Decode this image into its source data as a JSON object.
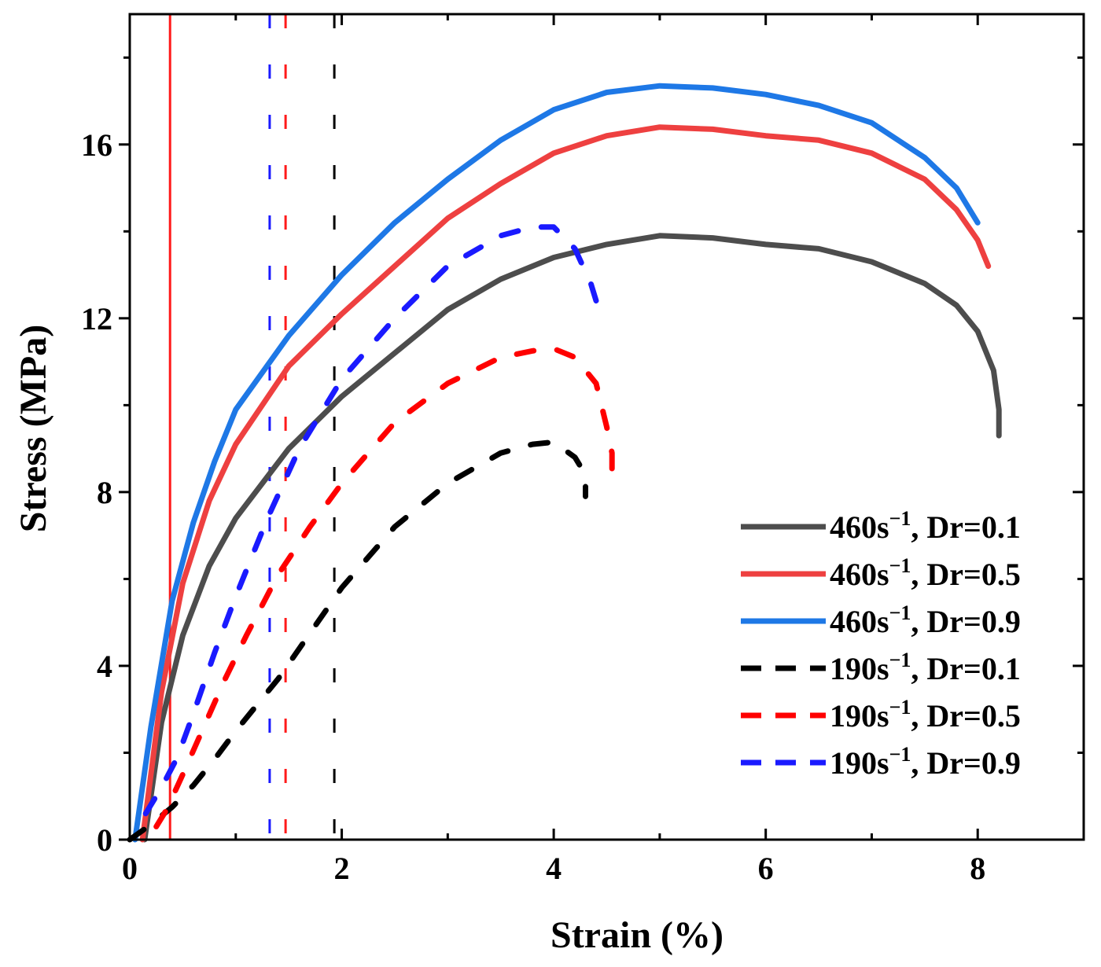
{
  "chart_data": {
    "type": "line",
    "title": "",
    "xlabel": "Strain (%)",
    "ylabel": "Stress (MPa)",
    "xlim": [
      0,
      9
    ],
    "ylim": [
      0,
      19
    ],
    "xticks": [
      0,
      2,
      4,
      6,
      8
    ],
    "yticks": [
      0,
      4,
      8,
      12,
      16
    ],
    "grid": false,
    "legend_position": "bottom-right",
    "reference_lines": [
      {
        "x": 0.38,
        "color": "#ff1a1a",
        "style": "solid"
      },
      {
        "x": 1.32,
        "color": "#1a1aff",
        "style": "dashed"
      },
      {
        "x": 1.47,
        "color": "#ff1a1a",
        "style": "dashed"
      },
      {
        "x": 1.93,
        "color": "#000000",
        "style": "dashed"
      }
    ],
    "series": [
      {
        "name": "460s−1, Dr=0.1",
        "label_main": "460s",
        "label_sup": "−1",
        "label_rest": ", Dr=0.1",
        "color": "#4d4d4d",
        "style": "solid",
        "x": [
          0.14,
          0.3,
          0.5,
          0.75,
          1.0,
          1.5,
          2.0,
          2.5,
          3.0,
          3.5,
          4.0,
          4.5,
          5.0,
          5.5,
          6.0,
          6.5,
          7.0,
          7.5,
          7.8,
          8.0,
          8.15,
          8.2,
          8.2
        ],
        "y": [
          0,
          2.7,
          4.7,
          6.3,
          7.4,
          9.0,
          10.2,
          11.2,
          12.2,
          12.9,
          13.4,
          13.7,
          13.9,
          13.85,
          13.7,
          13.6,
          13.3,
          12.8,
          12.3,
          11.7,
          10.8,
          9.9,
          9.3
        ]
      },
      {
        "name": "460s−1, Dr=0.5",
        "label_main": "460s",
        "label_sup": "−1",
        "label_rest": ", Dr=0.5",
        "color": "#ee4040",
        "style": "solid",
        "x": [
          0.12,
          0.3,
          0.5,
          0.75,
          1.0,
          1.5,
          2.0,
          2.5,
          3.0,
          3.5,
          4.0,
          4.5,
          5.0,
          5.5,
          6.0,
          6.5,
          7.0,
          7.5,
          7.8,
          8.0,
          8.1
        ],
        "y": [
          0,
          3.4,
          5.9,
          7.8,
          9.1,
          10.9,
          12.1,
          13.2,
          14.3,
          15.1,
          15.8,
          16.2,
          16.4,
          16.35,
          16.2,
          16.1,
          15.8,
          15.2,
          14.5,
          13.8,
          13.2
        ]
      },
      {
        "name": "460s−1, Dr=0.9",
        "label_main": "460s",
        "label_sup": "−1",
        "label_rest": ", Dr=0.9",
        "color": "#1e78e6",
        "style": "solid",
        "x": [
          0.05,
          0.2,
          0.4,
          0.6,
          0.8,
          1.0,
          1.5,
          2.0,
          2.5,
          3.0,
          3.5,
          4.0,
          4.5,
          5.0,
          5.5,
          6.0,
          6.5,
          7.0,
          7.5,
          7.8,
          8.0
        ],
        "y": [
          0,
          2.6,
          5.5,
          7.3,
          8.7,
          9.9,
          11.6,
          13.0,
          14.2,
          15.2,
          16.1,
          16.8,
          17.2,
          17.35,
          17.3,
          17.15,
          16.9,
          16.5,
          15.7,
          15.0,
          14.2
        ]
      },
      {
        "name": "190s−1, Dr=0.1",
        "label_main": "190s",
        "label_sup": "−1",
        "label_rest": ", Dr=0.1",
        "color": "#000000",
        "style": "dashed",
        "x": [
          0.0,
          0.2,
          0.4,
          0.6,
          0.8,
          1.0,
          1.4,
          2.0,
          2.5,
          3.0,
          3.5,
          3.8,
          4.0,
          4.2,
          4.3,
          4.3
        ],
        "y": [
          0,
          0.35,
          0.75,
          1.25,
          1.85,
          2.5,
          3.7,
          5.8,
          7.2,
          8.2,
          8.9,
          9.1,
          9.15,
          8.8,
          8.4,
          7.9
        ]
      },
      {
        "name": "190s−1, Dr=0.5",
        "label_main": "190s",
        "label_sup": "−1",
        "label_rest": ", Dr=0.5",
        "color": "#ff0000",
        "style": "dashed",
        "x": [
          0.25,
          0.35,
          0.5,
          0.7,
          0.9,
          1.1,
          1.4,
          1.7,
          2.0,
          2.5,
          3.0,
          3.5,
          3.8,
          4.0,
          4.2,
          4.4,
          4.5,
          4.55,
          4.55
        ],
        "y": [
          0.3,
          0.7,
          1.5,
          2.6,
          3.7,
          4.7,
          6.1,
          7.2,
          8.2,
          9.6,
          10.5,
          11.1,
          11.25,
          11.3,
          11.1,
          10.5,
          9.5,
          8.9,
          8.4
        ]
      },
      {
        "name": "190s−1, Dr=0.9",
        "label_main": "190s",
        "label_sup": "−1",
        "label_rest": ", Dr=0.9",
        "color": "#1a1aff",
        "style": "dashed",
        "x": [
          0.15,
          0.3,
          0.45,
          0.6,
          0.8,
          1.0,
          1.3,
          1.6,
          2.0,
          2.5,
          3.0,
          3.5,
          3.8,
          4.0,
          4.2,
          4.35,
          4.45
        ],
        "y": [
          0.6,
          1.2,
          1.9,
          2.9,
          4.3,
          5.6,
          7.4,
          9.0,
          10.6,
          12.0,
          13.2,
          13.9,
          14.1,
          14.1,
          13.6,
          12.8,
          12.0
        ]
      }
    ]
  }
}
